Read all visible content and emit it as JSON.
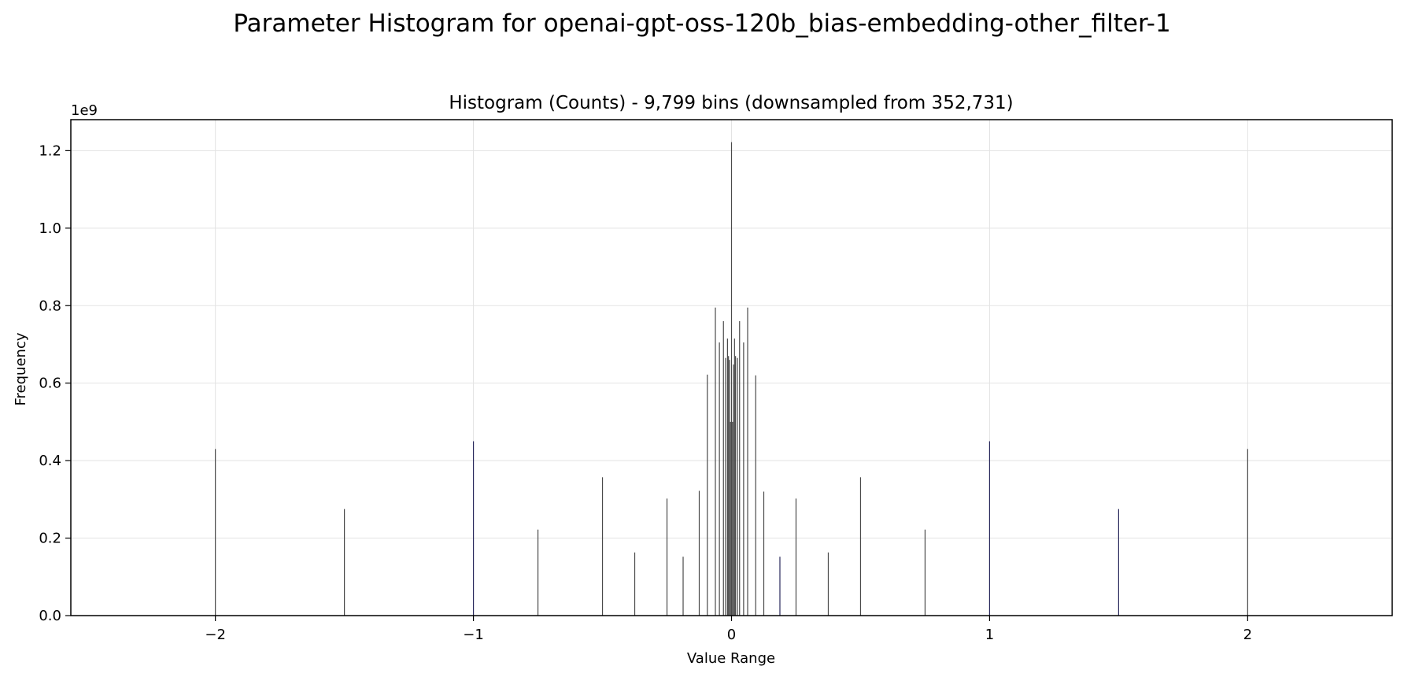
{
  "figure": {
    "suptitle": "Parameter Histogram for openai-gpt-oss-120b_bias-embedding-other_filter-1"
  },
  "chart_data": {
    "type": "bar",
    "title": "Histogram (Counts) - 9,799 bins (downsampled from 352,731)",
    "xlabel": "Value Range",
    "ylabel": "Frequency",
    "y_offset_label": "1e9",
    "xlim": [
      -2.56,
      2.56
    ],
    "ylim": [
      0,
      1.28
    ],
    "x_ticks": [
      -2,
      -1,
      0,
      1,
      2
    ],
    "x_tick_labels": [
      "−2",
      "−1",
      "0",
      "1",
      "2"
    ],
    "y_ticks": [
      0.0,
      0.2,
      0.4,
      0.6,
      0.8,
      1.0,
      1.2
    ],
    "y_tick_labels": [
      "0.0",
      "0.2",
      "0.4",
      "0.6",
      "0.8",
      "1.0",
      "1.2"
    ],
    "grid": true,
    "bar_color": "#4a4a4a",
    "accent_bar_color": "#2b2b5e",
    "y_unit": "1e9 counts",
    "bins": [
      {
        "x": -2.0,
        "y": 0.43
      },
      {
        "x": -1.5,
        "y": 0.275
      },
      {
        "x": -1.0,
        "y": 0.45
      },
      {
        "x": -0.75,
        "y": 0.222
      },
      {
        "x": -0.5,
        "y": 0.357
      },
      {
        "x": -0.375,
        "y": 0.163
      },
      {
        "x": -0.25,
        "y": 0.302
      },
      {
        "x": -0.1875,
        "y": 0.152
      },
      {
        "x": -0.125,
        "y": 0.322
      },
      {
        "x": -0.09375,
        "y": 0.622
      },
      {
        "x": -0.0625,
        "y": 0.795
      },
      {
        "x": -0.046875,
        "y": 0.705
      },
      {
        "x": -0.03125,
        "y": 0.76
      },
      {
        "x": -0.023,
        "y": 0.665
      },
      {
        "x": -0.0156,
        "y": 0.715
      },
      {
        "x": -0.0117,
        "y": 0.67
      },
      {
        "x": -0.0078,
        "y": 0.66
      },
      {
        "x": -0.0039,
        "y": 0.5
      },
      {
        "x": 0.0,
        "y": 1.222
      },
      {
        "x": 0.0039,
        "y": 0.5
      },
      {
        "x": 0.0078,
        "y": 0.648
      },
      {
        "x": 0.0117,
        "y": 0.715
      },
      {
        "x": 0.0156,
        "y": 0.67
      },
      {
        "x": 0.023,
        "y": 0.665
      },
      {
        "x": 0.03125,
        "y": 0.76
      },
      {
        "x": 0.046875,
        "y": 0.705
      },
      {
        "x": 0.0625,
        "y": 0.795
      },
      {
        "x": 0.09375,
        "y": 0.62
      },
      {
        "x": 0.125,
        "y": 0.32
      },
      {
        "x": 0.1875,
        "y": 0.152
      },
      {
        "x": 0.25,
        "y": 0.302
      },
      {
        "x": 0.375,
        "y": 0.163
      },
      {
        "x": 0.5,
        "y": 0.357
      },
      {
        "x": 0.75,
        "y": 0.222
      },
      {
        "x": 1.0,
        "y": 0.45
      },
      {
        "x": 1.5,
        "y": 0.275
      },
      {
        "x": 2.0,
        "y": 0.43
      }
    ]
  }
}
